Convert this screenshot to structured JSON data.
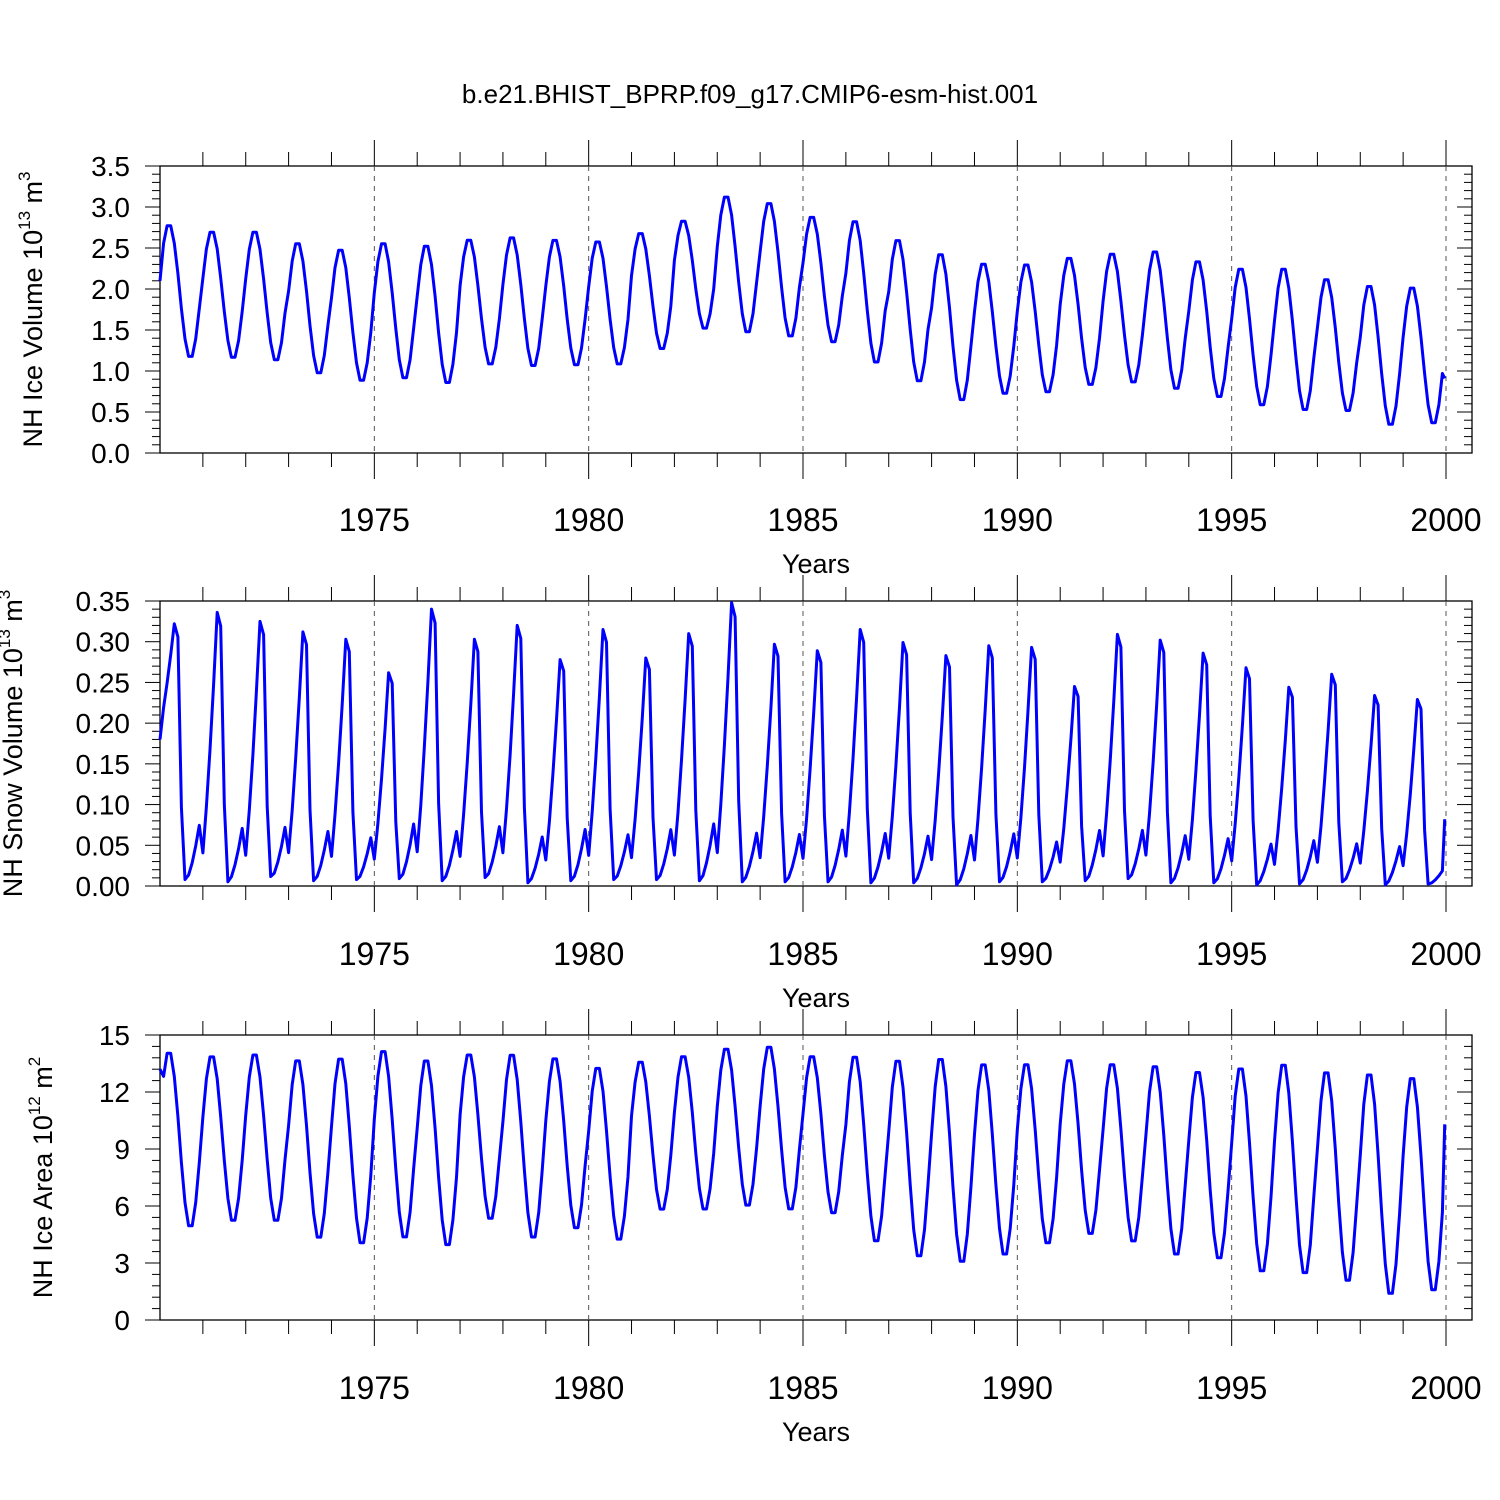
{
  "figure": {
    "title": "b.e21.BHIST_BPRP.f09_g17.CMIP6-esm-hist.001"
  },
  "chart_data": [
    {
      "type": "line",
      "ylabel": "NH Ice Volume 10",
      "ylabel_exp": "13",
      "ylabel_unit": "m",
      "ylabel_unit_exp": "3",
      "xlabel": "Years",
      "xlim": [
        1970.0,
        2000.0
      ],
      "ylim": [
        0.0,
        3.5
      ],
      "yticks": [
        0.0,
        0.5,
        1.0,
        1.5,
        2.0,
        2.5,
        3.0,
        3.5
      ],
      "ytick_labels": [
        "0.0",
        "0.5",
        "1.0",
        "1.5",
        "2.0",
        "2.5",
        "3.0",
        "3.5"
      ],
      "xticks": [
        1975,
        1980,
        1985,
        1990,
        1995,
        2000
      ],
      "xtick_labels": [
        "1975",
        "1980",
        "1985",
        "1990",
        "1995",
        "2000"
      ],
      "series_color": "#0000ff",
      "series": [
        {
          "name": "NH Ice Volume",
          "max": [
            2.8,
            2.72,
            2.72,
            2.58,
            2.5,
            2.58,
            2.55,
            2.62,
            2.65,
            2.62,
            2.6,
            2.7,
            2.85,
            3.15,
            3.07,
            2.9,
            2.85,
            2.62,
            2.45,
            2.33,
            2.32,
            2.4,
            2.45,
            2.48,
            2.36,
            2.27,
            2.27,
            2.14,
            2.06,
            2.04
          ],
          "min": [
            1.15,
            1.14,
            1.11,
            0.95,
            0.86,
            0.89,
            0.83,
            1.06,
            1.04,
            1.05,
            1.06,
            1.25,
            1.5,
            1.45,
            1.4,
            1.33,
            1.08,
            0.85,
            0.62,
            0.7,
            0.72,
            0.81,
            0.84,
            0.76,
            0.66,
            0.56,
            0.5,
            0.49,
            0.32,
            0.34
          ],
          "start": 2.1,
          "end": 0.91
        }
      ]
    },
    {
      "type": "line",
      "ylabel": "NH Snow Volume 10",
      "ylabel_exp": "13",
      "ylabel_unit": "m",
      "ylabel_unit_exp": "3",
      "xlabel": "Years",
      "xlim": [
        1970.0,
        2000.0
      ],
      "ylim": [
        0.0,
        0.35
      ],
      "yticks": [
        0.0,
        0.05,
        0.1,
        0.15,
        0.2,
        0.25,
        0.3,
        0.35
      ],
      "ytick_labels": [
        "0.00",
        "0.05",
        "0.10",
        "0.15",
        "0.20",
        "0.25",
        "0.30",
        "0.35"
      ],
      "xticks": [
        1975,
        1980,
        1985,
        1990,
        1995,
        2000
      ],
      "xtick_labels": [
        "1975",
        "1980",
        "1985",
        "1990",
        "1995",
        "2000"
      ],
      "series_color": "#0000ff",
      "series": [
        {
          "name": "NH Snow Volume",
          "max": [
            0.322,
            0.336,
            0.325,
            0.312,
            0.303,
            0.262,
            0.34,
            0.303,
            0.32,
            0.278,
            0.315,
            0.28,
            0.31,
            0.348,
            0.297,
            0.289,
            0.315,
            0.299,
            0.283,
            0.295,
            0.293,
            0.245,
            0.309,
            0.302,
            0.286,
            0.268,
            0.244,
            0.26,
            0.234,
            0.229
          ],
          "min": [
            0.006,
            0.004,
            0.009,
            0.005,
            0.006,
            0.007,
            0.005,
            0.008,
            0.003,
            0.005,
            0.006,
            0.006,
            0.005,
            0.004,
            0.004,
            0.004,
            0.003,
            0.003,
            0.001,
            0.004,
            0.004,
            0.005,
            0.007,
            0.003,
            0.003,
            0.001,
            0.002,
            0.004,
            0.001,
            0.002
          ],
          "start": 0.18,
          "end": 0.082
        }
      ]
    },
    {
      "type": "line",
      "ylabel": "NH Ice Area 10",
      "ylabel_exp": "12",
      "ylabel_unit": "m",
      "ylabel_unit_exp": "2",
      "xlabel": "Years",
      "xlim": [
        1970.0,
        2000.0
      ],
      "ylim": [
        0,
        15
      ],
      "yticks": [
        0,
        3,
        6,
        9,
        12,
        15
      ],
      "ytick_labels": [
        "0",
        "3",
        "6",
        "9",
        "12",
        "15"
      ],
      "xticks": [
        1975,
        1980,
        1985,
        1990,
        1995,
        2000
      ],
      "xtick_labels": [
        "1975",
        "1980",
        "1985",
        "1990",
        "1995",
        "2000"
      ],
      "series_color": "#0000ff",
      "series": [
        {
          "name": "NH Ice Area",
          "max": [
            14.2,
            14.0,
            14.1,
            13.8,
            13.9,
            14.3,
            13.8,
            14.1,
            14.1,
            13.9,
            13.4,
            13.7,
            14.0,
            14.4,
            14.5,
            14.0,
            14.0,
            13.8,
            13.9,
            13.6,
            13.6,
            13.8,
            13.6,
            13.5,
            13.2,
            13.4,
            13.6,
            13.2,
            13.1,
            12.9
          ],
          "min": [
            4.8,
            5.1,
            5.1,
            4.2,
            3.9,
            4.2,
            3.8,
            5.2,
            4.2,
            4.7,
            4.1,
            5.7,
            5.7,
            5.9,
            5.7,
            5.5,
            4.0,
            3.2,
            2.9,
            3.3,
            3.9,
            4.4,
            4.0,
            3.3,
            3.1,
            2.4,
            2.3,
            1.9,
            1.2,
            1.4
          ],
          "start": 13.2,
          "end": 10.3
        }
      ]
    }
  ]
}
